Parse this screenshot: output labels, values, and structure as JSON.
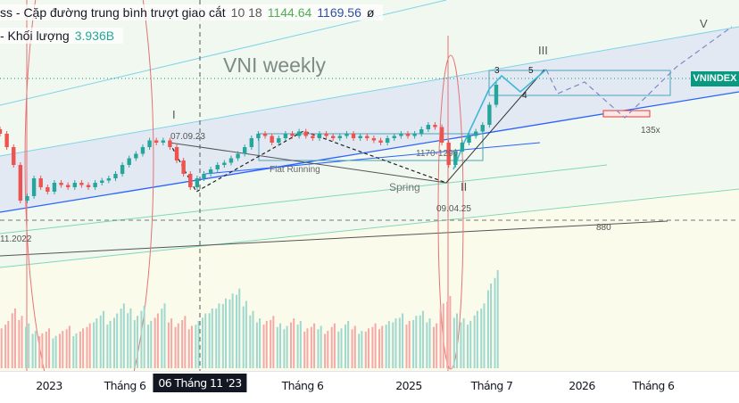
{
  "legend": {
    "indicator_name": "ss - Cặp đường trung bình trượt giao cắt",
    "indicator_params": "10 18",
    "ma_fast_value": "1144.64",
    "ma_slow_value": "1169.56",
    "indicator_symbol": "ø",
    "volume_label": "- Khối lượng",
    "volume_value": "3.936B"
  },
  "watermark": "VNI weekly",
  "symbol_tag": "VNINDEX",
  "annotations": {
    "wave_1": "I",
    "wave_2": "II",
    "wave_3": "III",
    "wave_5": "V",
    "sub_3": "3",
    "sub_4": "4",
    "sub_5": "5",
    "date_top": "07.09.23",
    "date_spring": "09.04.25",
    "date_low": "11.2022",
    "flat": "Flat Running",
    "spring": "Spring",
    "zone": "1170-1290",
    "level_880": "880",
    "target": "135x"
  },
  "x_axis": {
    "ticks": [
      "2023",
      "Tháng 6",
      "06 Tháng 11 '23",
      "Tháng 6",
      "2025",
      "Tháng 7",
      "2026",
      "Tháng 6"
    ],
    "highlighted": "06 Tháng 11 '23"
  },
  "colors": {
    "up": "#26a69a",
    "down": "#ef5350",
    "accent": "#089981",
    "channel": "#2962ff"
  },
  "chart_data": {
    "type": "candlestick",
    "interval": "weekly",
    "symbol": "VNINDEX",
    "closes": [
      1290,
      1230,
      1150,
      990,
      1010,
      1090,
      1050,
      1030,
      1070,
      1060,
      1050,
      1070,
      1060,
      1050,
      1070,
      1080,
      1090,
      1110,
      1150,
      1180,
      1200,
      1230,
      1260,
      1250,
      1260,
      1230,
      1170,
      1110,
      1050,
      1090,
      1110,
      1130,
      1150,
      1160,
      1180,
      1200,
      1230,
      1270,
      1290,
      1280,
      1250,
      1270,
      1290,
      1280,
      1300,
      1280,
      1270,
      1290,
      1280,
      1270,
      1280,
      1290,
      1270,
      1280,
      1270,
      1260,
      1250,
      1270,
      1280,
      1290,
      1280,
      1290,
      1310,
      1330,
      1320,
      1250,
      1150,
      1210,
      1250,
      1280,
      1300,
      1330,
      1420,
      1510
    ],
    "volume_B": [
      1.6,
      1.9,
      2.4,
      2.1,
      1.8,
      1.5,
      1.4,
      1.6,
      1.3,
      1.5,
      1.7,
      1.4,
      1.6,
      1.8,
      2.0,
      2.3,
      1.9,
      2.2,
      2.6,
      2.4,
      2.1,
      2.5,
      1.9,
      2.2,
      2.6,
      2.0,
      1.8,
      2.1,
      1.7,
      1.9,
      2.2,
      2.4,
      2.6,
      2.8,
      3.0,
      3.2,
      2.7,
      2.3,
      2.0,
      1.9,
      2.1,
      1.8,
      1.7,
      2.0,
      1.9,
      1.6,
      1.8,
      1.7,
      1.5,
      1.8,
      1.6,
      1.9,
      1.7,
      1.5,
      1.6,
      1.8,
      1.7,
      1.9,
      2.0,
      2.2,
      1.9,
      2.1,
      2.3,
      2.0,
      1.8,
      2.6,
      2.9,
      2.2,
      2.0,
      1.9,
      2.3,
      2.6,
      3.4,
      3.936
    ],
    "levels": [
      880
    ]
  }
}
